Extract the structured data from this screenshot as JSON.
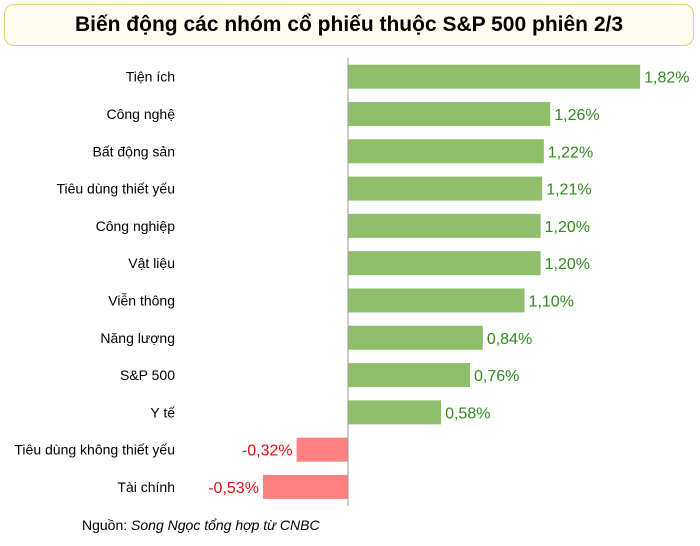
{
  "title": "Biến động các nhóm cổ phiếu thuộc S&P 500 phiên 2/3",
  "source": {
    "prefix": "Nguồn:",
    "text": "Song Ngọc tổng hợp từ CNBC"
  },
  "colors": {
    "positive_bar": "#8fbf6a",
    "negative_bar": "#ff8080",
    "positive_label": "#2e8b1e",
    "negative_label": "#e01010",
    "axis": "#999999"
  },
  "chart_data": {
    "type": "bar",
    "orientation": "horizontal",
    "categories": [
      "Tiện ích",
      "Công nghệ",
      "Bất động sản",
      "Tiêu dùng thiết yếu",
      "Công nghiệp",
      "Vật liệu",
      "Viễn thông",
      "Năng lượng",
      "S&P 500",
      "Y tế",
      "Tiêu dùng không thiết yếu",
      "Tài chính"
    ],
    "values": [
      1.82,
      1.26,
      1.22,
      1.21,
      1.2,
      1.2,
      1.1,
      0.84,
      0.76,
      0.58,
      -0.32,
      -0.53
    ],
    "labels": [
      "1,82%",
      "1,26%",
      "1,22%",
      "1,21%",
      "1,20%",
      "1,20%",
      "1,10%",
      "0,84%",
      "0,76%",
      "0,58%",
      "-0,32%",
      "-0,53%"
    ],
    "grid": false,
    "legend": "none"
  }
}
